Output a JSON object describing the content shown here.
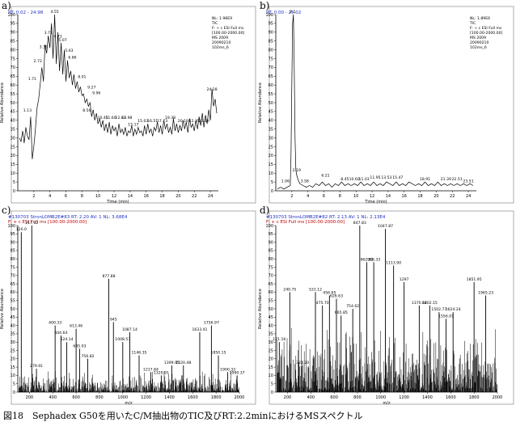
{
  "caption": "図18　Sephadex G50を用いたC/M抽出物のTIC及びRT:2.2minにおけるMSスペクトル",
  "chart_data": [
    {
      "panel_label": "a)",
      "type": "line",
      "header": "RT: 0.02 - 24.98",
      "xlabel": "Time (min)",
      "ylabel": "Relative Abundance",
      "xlim": [
        0,
        25
      ],
      "ylim": [
        0,
        100
      ],
      "xticks": [
        2,
        4,
        6,
        8,
        10,
        12,
        14,
        16,
        18,
        20,
        22,
        24
      ],
      "yticks": [
        0,
        5,
        10,
        15,
        20,
        25,
        30,
        35,
        40,
        45,
        50,
        55,
        60,
        65,
        70,
        75,
        80,
        85,
        90,
        95,
        100
      ],
      "series": [
        {
          "x": [
            0.2,
            0.4,
            0.6,
            0.8,
            1.0,
            1.2,
            1.4,
            1.6,
            1.8,
            2.0,
            2.2,
            2.4,
            2.6,
            2.8,
            3.0,
            3.2,
            3.4,
            3.6,
            3.8,
            4.0,
            4.2,
            4.4,
            4.6,
            4.8,
            5.0,
            5.2,
            5.4,
            5.6,
            5.8,
            6.0,
            6.2,
            6.4,
            6.6,
            6.8,
            7.0,
            7.2,
            7.4,
            7.6,
            7.8,
            8.0,
            8.2,
            8.4,
            8.6,
            8.8,
            9.0,
            9.2,
            9.4,
            9.6,
            9.8,
            10.0,
            10.2,
            10.4,
            10.6,
            10.8,
            11.0,
            11.2,
            11.4,
            11.6,
            11.8,
            12.0,
            12.2,
            12.4,
            12.6,
            12.8,
            13.0,
            13.2,
            13.4,
            13.6,
            13.8,
            14.0,
            14.2,
            14.4,
            14.6,
            14.8,
            15.0,
            15.2,
            15.4,
            15.6,
            15.8,
            16.0,
            16.2,
            16.4,
            16.6,
            16.8,
            17.0,
            17.2,
            17.4,
            17.6,
            17.8,
            18.0,
            18.2,
            18.4,
            18.6,
            18.8,
            19.0,
            19.2,
            19.4,
            19.6,
            19.8,
            20.0,
            20.2,
            20.4,
            20.6,
            20.8,
            21.0,
            21.2,
            21.4,
            21.6,
            21.8,
            22.0,
            22.2,
            22.4,
            22.6,
            22.8,
            23.0,
            23.2,
            23.4,
            23.6,
            23.8,
            24.0,
            24.2,
            24.4,
            24.6,
            24.8
          ],
          "y": [
            30,
            28,
            34,
            27,
            36,
            31,
            29,
            42,
            18,
            25,
            35,
            47,
            52,
            61,
            70,
            62,
            83,
            78,
            88,
            81,
            95,
            75,
            100,
            72,
            90,
            68,
            84,
            66,
            80,
            62,
            74,
            64,
            68,
            60,
            66,
            58,
            62,
            56,
            59,
            54,
            55,
            50,
            52,
            48,
            50,
            42,
            46,
            40,
            44,
            38,
            41,
            36,
            40,
            34,
            38,
            33,
            39,
            32,
            37,
            34,
            36,
            31,
            38,
            33,
            35,
            32,
            36,
            31,
            34,
            33,
            37,
            31,
            35,
            32,
            36,
            33,
            34,
            31,
            37,
            32,
            38,
            33,
            35,
            31,
            36,
            34,
            39,
            33,
            37,
            32,
            40,
            35,
            38,
            33,
            36,
            32,
            41,
            34,
            38,
            33,
            37,
            34,
            40,
            35,
            39,
            33,
            41,
            36,
            38,
            34,
            40,
            35,
            42,
            37,
            44,
            36,
            43,
            38,
            46,
            40,
            58,
            48,
            52,
            44
          ]
        }
      ],
      "annotations": [
        {
          "x": 1.2,
          "y": 44,
          "label": "1.13"
        },
        {
          "x": 3.2,
          "y": 80,
          "label": "3.35"
        },
        {
          "x": 3.8,
          "y": 88,
          "label": "3.71"
        },
        {
          "x": 4.6,
          "y": 100,
          "label": "4.55"
        },
        {
          "x": 5.0,
          "y": 86,
          "label": "4.73"
        },
        {
          "x": 2.5,
          "y": 72,
          "label": "2.72"
        },
        {
          "x": 5.6,
          "y": 84,
          "label": "5.07"
        },
        {
          "x": 6.4,
          "y": 78,
          "label": "5.63"
        },
        {
          "x": 6.8,
          "y": 74,
          "label": "6.86"
        },
        {
          "x": 1.8,
          "y": 62,
          "label": "1.71"
        },
        {
          "x": 8.0,
          "y": 63,
          "label": "8.01"
        },
        {
          "x": 9.2,
          "y": 57,
          "label": "9.27"
        },
        {
          "x": 9.8,
          "y": 54,
          "label": "9.96"
        },
        {
          "x": 8.6,
          "y": 44,
          "label": "8.56"
        },
        {
          "x": 10.6,
          "y": 40,
          "label": "10.45"
        },
        {
          "x": 11.6,
          "y": 40,
          "label": "11.60"
        },
        {
          "x": 12.8,
          "y": 40,
          "label": "12.82"
        },
        {
          "x": 13.6,
          "y": 40,
          "label": "13.98"
        },
        {
          "x": 14.4,
          "y": 36,
          "label": "15.17"
        },
        {
          "x": 15.6,
          "y": 38,
          "label": "15.03"
        },
        {
          "x": 16.8,
          "y": 38,
          "label": "16.51"
        },
        {
          "x": 18.0,
          "y": 38,
          "label": "17.73"
        },
        {
          "x": 19.0,
          "y": 40,
          "label": "19.38"
        },
        {
          "x": 20.6,
          "y": 38,
          "label": "20.18"
        },
        {
          "x": 22.0,
          "y": 38,
          "label": "22.35"
        },
        {
          "x": 23.2,
          "y": 38,
          "label": "22.99"
        },
        {
          "x": 24.2,
          "y": 56,
          "label": "24.28"
        }
      ],
      "info": [
        "NL: 1.98E9",
        "TIC",
        "F: + c ESI Full ms",
        "[100.00-2000.00]",
        "MS 2009",
        "20090210",
        "102ms_6"
      ]
    },
    {
      "panel_label": "b)",
      "type": "line",
      "header": "RT: 0.00 - 25.02",
      "xlabel": "Time (min)",
      "ylabel": "Relative Abundance",
      "xlim": [
        0,
        25
      ],
      "ylim": [
        0,
        100
      ],
      "xticks": [
        2,
        4,
        6,
        8,
        10,
        12,
        14,
        16,
        18,
        20,
        22,
        24
      ],
      "yticks": [
        0,
        5,
        10,
        15,
        20,
        25,
        30,
        35,
        40,
        45,
        50,
        55,
        60,
        65,
        70,
        75,
        80,
        85,
        90,
        95,
        100
      ],
      "series": [
        {
          "x": [
            0.2,
            0.6,
            1.0,
            1.4,
            1.8,
            1.9,
            2.0,
            2.1,
            2.2,
            2.3,
            2.4,
            2.5,
            2.6,
            2.8,
            3.0,
            3.4,
            3.8,
            4.2,
            4.6,
            5.0,
            5.4,
            5.8,
            6.2,
            6.6,
            7.0,
            7.4,
            7.8,
            8.2,
            8.6,
            9.0,
            9.4,
            9.8,
            10.2,
            10.6,
            11.0,
            11.4,
            11.8,
            12.2,
            12.6,
            13.0,
            13.4,
            13.8,
            14.2,
            14.6,
            15.0,
            15.4,
            15.8,
            16.2,
            16.6,
            17.0,
            17.4,
            17.8,
            18.2,
            18.6,
            19.0,
            19.4,
            19.8,
            20.2,
            20.6,
            21.0,
            21.4,
            21.8,
            22.2,
            22.6,
            23.0,
            23.4,
            23.8,
            24.2,
            24.6
          ],
          "y": [
            1,
            2,
            1,
            2,
            3,
            20,
            60,
            95,
            100,
            70,
            30,
            12,
            9,
            6,
            4,
            3,
            2,
            3,
            2,
            4,
            3,
            5,
            3,
            4,
            2,
            4,
            3,
            5,
            3,
            4,
            3,
            4,
            3,
            5,
            3,
            4,
            3,
            5,
            3,
            4,
            3,
            5,
            4,
            3,
            5,
            3,
            4,
            3,
            5,
            4,
            3,
            4,
            3,
            5,
            3,
            4,
            3,
            5,
            3,
            4,
            3,
            4,
            3,
            4,
            3,
            4,
            3,
            4,
            3
          ]
        }
      ],
      "annotations": [
        {
          "x": 2.1,
          "y": 100,
          "label": "2.1"
        },
        {
          "x": 2.6,
          "y": 10,
          "label": "2.19"
        },
        {
          "x": 1.2,
          "y": 4,
          "label": "1.06"
        },
        {
          "x": 3.6,
          "y": 4,
          "label": "3.58"
        },
        {
          "x": 6.2,
          "y": 7,
          "label": "6.21"
        },
        {
          "x": 8.6,
          "y": 5,
          "label": "8.45"
        },
        {
          "x": 9.8,
          "y": 5,
          "label": "10.60"
        },
        {
          "x": 11.0,
          "y": 5,
          "label": "11.03"
        },
        {
          "x": 12.4,
          "y": 6,
          "label": "11.95"
        },
        {
          "x": 13.8,
          "y": 6,
          "label": "13.53"
        },
        {
          "x": 15.2,
          "y": 6,
          "label": "15.47"
        },
        {
          "x": 18.6,
          "y": 5,
          "label": "18.91"
        },
        {
          "x": 21.2,
          "y": 5,
          "label": "21.39"
        },
        {
          "x": 22.6,
          "y": 5,
          "label": "22.51"
        },
        {
          "x": 24.0,
          "y": 4,
          "label": "23.51"
        }
      ],
      "info": [
        "NL: 1.89E6",
        "TIC",
        "F: + c ESI Full ms",
        "[100.00-2000.00]",
        "MS 2009",
        "20090210",
        "102ms_6"
      ]
    },
    {
      "panel_label": "c)",
      "type": "bar",
      "header": "#130703 StronLOMB2E#83  RT: 2.20  AV: 1  NL: 3.68E4",
      "subheader": "F: + c ESI Full ms [100.00-2000.00]",
      "xlabel": "m/z",
      "ylabel": "Relative Abundance",
      "xlim": [
        100,
        2000
      ],
      "ylim": [
        0,
        100
      ],
      "xticks": [
        200,
        400,
        600,
        800,
        1000,
        1200,
        1400,
        1600,
        1800,
        2000
      ],
      "xticklabels": [
        "200",
        "400",
        "600",
        "800",
        "1000",
        "1200",
        "1400",
        "1600",
        "1800",
        "2000"
      ],
      "yticks": [
        0,
        5,
        10,
        15,
        20,
        25,
        30,
        35,
        40,
        45,
        50,
        55,
        60,
        65,
        70,
        75,
        80,
        85,
        90,
        95,
        100
      ],
      "peaks": [
        {
          "mz": 130,
          "y": 96,
          "label": "120.0"
        },
        {
          "mz": 220,
          "y": 100,
          "label": "217.12"
        },
        {
          "mz": 260,
          "y": 14,
          "label": "279.91"
        },
        {
          "mz": 420,
          "y": 40,
          "label": "400.33"
        },
        {
          "mz": 470,
          "y": 34,
          "label": "444.64"
        },
        {
          "mz": 520,
          "y": 30,
          "label": "524.14"
        },
        {
          "mz": 600,
          "y": 38,
          "label": "613.46"
        },
        {
          "mz": 630,
          "y": 26,
          "label": "645.03"
        },
        {
          "mz": 700,
          "y": 20,
          "label": "756.82"
        },
        {
          "mz": 880,
          "y": 68,
          "label": "877.88"
        },
        {
          "mz": 920,
          "y": 42,
          "label": "945"
        },
        {
          "mz": 1000,
          "y": 30,
          "label": "1008.57"
        },
        {
          "mz": 1060,
          "y": 36,
          "label": "1087.14"
        },
        {
          "mz": 1140,
          "y": 22,
          "label": "1146.35"
        },
        {
          "mz": 1240,
          "y": 12,
          "label": "1217.84"
        },
        {
          "mz": 1330,
          "y": 10,
          "label": "1320.91"
        },
        {
          "mz": 1420,
          "y": 16,
          "label": "1399.05"
        },
        {
          "mz": 1520,
          "y": 16,
          "label": "1520.48"
        },
        {
          "mz": 1660,
          "y": 36,
          "label": "1633.41"
        },
        {
          "mz": 1760,
          "y": 40,
          "label": "1756.97"
        },
        {
          "mz": 1820,
          "y": 22,
          "label": "1850.15"
        },
        {
          "mz": 1900,
          "y": 12,
          "label": "1900.33"
        },
        {
          "mz": 1980,
          "y": 10,
          "label": "1990.37"
        }
      ]
    },
    {
      "panel_label": "d)",
      "type": "bar",
      "header": "#130703 StronLOMB2E#82  RT: 2.13  AV: 1  NL: 2.13E4",
      "subheader": "F: + c ESI Full ms [100.00-2000.00]",
      "xlabel": "m/z",
      "ylabel": "Relative Abundance",
      "xlim": [
        100,
        2000
      ],
      "ylim": [
        0,
        100
      ],
      "xticks": [
        200,
        400,
        600,
        800,
        1000,
        1200,
        1400,
        1600,
        1800,
        2000
      ],
      "xticklabels": [
        "200",
        "400",
        "600",
        "800",
        "1000",
        "1200",
        "1400",
        "1600",
        "1800",
        "2000"
      ],
      "yticks": [
        0,
        5,
        10,
        15,
        20,
        25,
        30,
        35,
        40,
        45,
        50,
        55,
        60,
        65,
        70,
        75,
        80,
        85,
        90,
        95,
        100
      ],
      "peaks": [
        {
          "mz": 130,
          "y": 30,
          "label": "171.16"
        },
        {
          "mz": 220,
          "y": 60,
          "label": "240.75"
        },
        {
          "mz": 330,
          "y": 16,
          "label": "321.20"
        },
        {
          "mz": 440,
          "y": 60,
          "label": "531.12"
        },
        {
          "mz": 500,
          "y": 52,
          "label": "475.70"
        },
        {
          "mz": 560,
          "y": 58,
          "label": "456.65"
        },
        {
          "mz": 620,
          "y": 56,
          "label": "626.63"
        },
        {
          "mz": 660,
          "y": 46,
          "label": "665.85"
        },
        {
          "mz": 760,
          "y": 50,
          "label": "754.62"
        },
        {
          "mz": 820,
          "y": 100,
          "label": "847.83"
        },
        {
          "mz": 880,
          "y": 78,
          "label": "962.83"
        },
        {
          "mz": 940,
          "y": 78,
          "label": "986.33"
        },
        {
          "mz": 1040,
          "y": 98,
          "label": "1047.87"
        },
        {
          "mz": 1110,
          "y": 76,
          "label": "1113.90"
        },
        {
          "mz": 1200,
          "y": 66,
          "label": "1297"
        },
        {
          "mz": 1330,
          "y": 52,
          "label": "1370.02"
        },
        {
          "mz": 1420,
          "y": 52,
          "label": "1402.15"
        },
        {
          "mz": 1500,
          "y": 48,
          "label": "1502.77"
        },
        {
          "mz": 1560,
          "y": 44,
          "label": "1556.01"
        },
        {
          "mz": 1620,
          "y": 48,
          "label": "1624.24"
        },
        {
          "mz": 1800,
          "y": 66,
          "label": "1851.95"
        },
        {
          "mz": 1900,
          "y": 58,
          "label": "1965.23"
        }
      ]
    }
  ]
}
